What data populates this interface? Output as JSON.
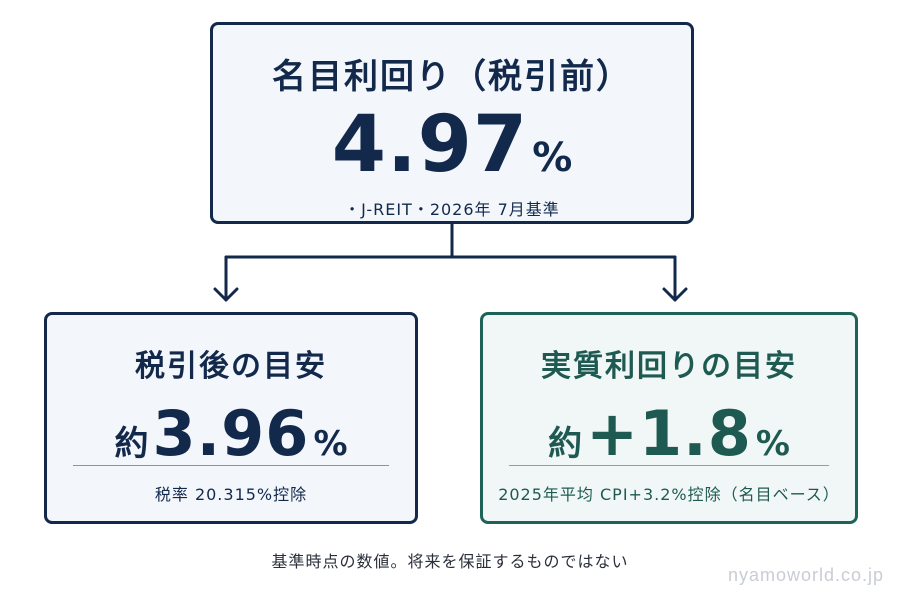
{
  "top": {
    "title": "名目利回り（税引前）",
    "value": "4.97",
    "unit": "%",
    "subtitle": "・J-REIT・2026年 7月基準"
  },
  "left": {
    "title": "税引後の目安",
    "prefix": "約",
    "value": "3.96",
    "unit": "%",
    "note": "税率 20.315%控除"
  },
  "right": {
    "title": "実質利回りの目安",
    "prefix": "約",
    "value": "+1.8",
    "unit": "%",
    "note": "2025年平均 CPI+3.2%控除（名目ベース）"
  },
  "footnote": "基準時点の数値。将来を保証するものではない",
  "watermark": "nyamoworld.co.jp",
  "colors": {
    "navy": "#13294b",
    "teal": "#1e5a52",
    "box_fill": "#f3f7fc"
  }
}
